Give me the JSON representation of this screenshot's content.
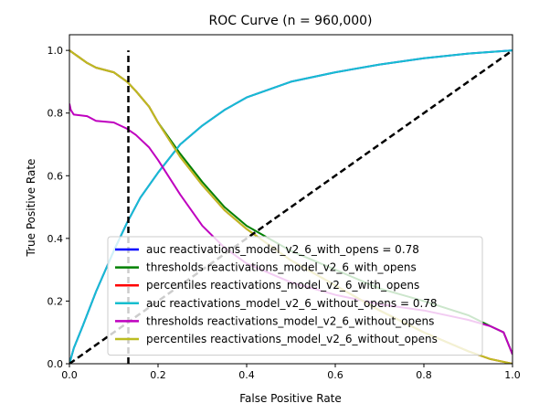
{
  "chart_data": {
    "type": "line",
    "title": "ROC Curve (n = 960,000)",
    "xlabel": "False Positive Rate",
    "ylabel": "True Positive Rate",
    "xlim": [
      0,
      1
    ],
    "ylim": [
      0,
      1.05
    ],
    "xticks": [
      0,
      0.2,
      0.4,
      0.6,
      0.8,
      1.0
    ],
    "xtick_labels": [
      "0.0",
      "0.2",
      "0.4",
      "0.6",
      "0.8",
      "1.0"
    ],
    "yticks": [
      0,
      0.2,
      0.4,
      0.6,
      0.8,
      1.0
    ],
    "ytick_labels": [
      "0.0",
      "0.2",
      "0.4",
      "0.6",
      "0.8",
      "1.0"
    ],
    "legend_position": "lower-center",
    "series": [
      {
        "name": "auc reactivations_model_v2_6_with_opens = 0.78",
        "color": "#0000ff",
        "x": [
          0,
          0.01,
          0.03,
          0.06,
          0.1,
          0.13,
          0.16,
          0.2,
          0.25,
          0.3,
          0.35,
          0.4,
          0.5,
          0.6,
          0.7,
          0.8,
          0.9,
          1.0
        ],
        "y": [
          0,
          0.05,
          0.12,
          0.23,
          0.36,
          0.45,
          0.53,
          0.61,
          0.7,
          0.76,
          0.81,
          0.85,
          0.9,
          0.93,
          0.955,
          0.975,
          0.99,
          1.0
        ]
      },
      {
        "name": "thresholds reactivations_model_v2_6_with_opens",
        "color": "#008000",
        "x": [
          0,
          0.01,
          0.02,
          0.04,
          0.06,
          0.1,
          0.13,
          0.15,
          0.18,
          0.2,
          0.25,
          0.3,
          0.35,
          0.4,
          0.5,
          0.6,
          0.7,
          0.8,
          0.9,
          0.95,
          0.98,
          1.0
        ],
        "y": [
          1.0,
          0.99,
          0.98,
          0.96,
          0.945,
          0.93,
          0.9,
          0.87,
          0.82,
          0.77,
          0.67,
          0.58,
          0.5,
          0.44,
          0.36,
          0.3,
          0.24,
          0.2,
          0.155,
          0.12,
          0.1,
          0.03
        ]
      },
      {
        "name": "percentiles reactivations_model_v2_6_with_opens",
        "color": "#ff0000",
        "x": [
          0,
          0.01,
          0.02,
          0.04,
          0.06,
          0.1,
          0.13,
          0.15,
          0.18,
          0.2,
          0.25,
          0.3,
          0.35,
          0.4,
          0.5,
          0.6,
          0.7,
          0.8,
          0.9,
          0.95,
          1.0
        ],
        "y": [
          1.0,
          0.99,
          0.98,
          0.96,
          0.945,
          0.93,
          0.9,
          0.87,
          0.82,
          0.77,
          0.66,
          0.57,
          0.49,
          0.43,
          0.33,
          0.25,
          0.17,
          0.1,
          0.04,
          0.015,
          0.0
        ]
      },
      {
        "name": "auc reactivations_model_v2_6_without_opens = 0.78",
        "color": "#17becf",
        "x": [
          0,
          0.01,
          0.03,
          0.06,
          0.1,
          0.13,
          0.16,
          0.2,
          0.25,
          0.3,
          0.35,
          0.4,
          0.5,
          0.6,
          0.7,
          0.8,
          0.9,
          1.0
        ],
        "y": [
          0,
          0.05,
          0.12,
          0.23,
          0.36,
          0.45,
          0.53,
          0.61,
          0.7,
          0.76,
          0.81,
          0.85,
          0.9,
          0.93,
          0.955,
          0.975,
          0.99,
          1.0
        ]
      },
      {
        "name": "thresholds reactivations_model_v2_6_without_opens",
        "color": "#bf00bf",
        "x": [
          0,
          0.003,
          0.01,
          0.04,
          0.06,
          0.1,
          0.13,
          0.15,
          0.18,
          0.2,
          0.25,
          0.3,
          0.35,
          0.4,
          0.5,
          0.6,
          0.7,
          0.8,
          0.9,
          0.95,
          0.98,
          1.0
        ],
        "y": [
          0.83,
          0.81,
          0.795,
          0.79,
          0.775,
          0.77,
          0.75,
          0.73,
          0.69,
          0.65,
          0.54,
          0.44,
          0.37,
          0.32,
          0.26,
          0.22,
          0.19,
          0.17,
          0.14,
          0.12,
          0.1,
          0.03
        ]
      },
      {
        "name": "percentiles reactivations_model_v2_6_without_opens",
        "color": "#bcbd22",
        "x": [
          0,
          0.01,
          0.02,
          0.04,
          0.06,
          0.1,
          0.13,
          0.15,
          0.18,
          0.2,
          0.25,
          0.3,
          0.35,
          0.4,
          0.5,
          0.6,
          0.7,
          0.8,
          0.9,
          0.95,
          1.0
        ],
        "y": [
          1.0,
          0.99,
          0.98,
          0.96,
          0.945,
          0.93,
          0.9,
          0.87,
          0.82,
          0.77,
          0.66,
          0.57,
          0.49,
          0.43,
          0.33,
          0.25,
          0.17,
          0.1,
          0.04,
          0.015,
          0.0
        ]
      }
    ],
    "reference_lines": [
      {
        "name": "diagonal",
        "style": "dashed",
        "color": "#000000",
        "x": [
          0,
          1
        ],
        "y": [
          0,
          1
        ]
      },
      {
        "name": "vertical-cutoff",
        "style": "dashed",
        "color": "#000000",
        "x": [
          0.133,
          0.133
        ],
        "y": [
          0,
          1.0
        ]
      }
    ]
  }
}
